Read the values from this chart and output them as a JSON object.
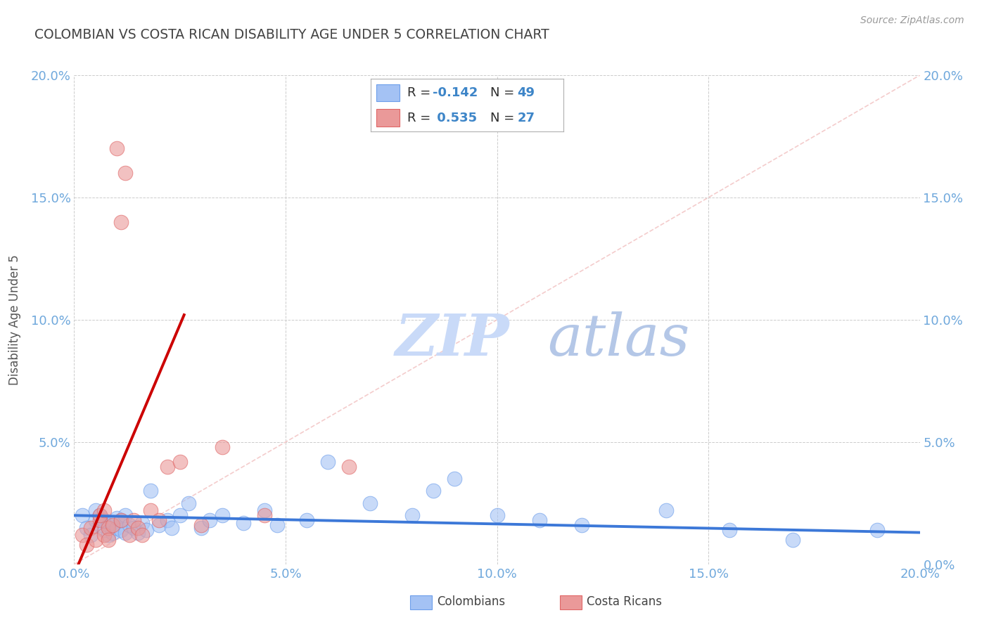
{
  "title": "COLOMBIAN VS COSTA RICAN DISABILITY AGE UNDER 5 CORRELATION CHART",
  "source": "Source: ZipAtlas.com",
  "ylabel": "Disability Age Under 5",
  "xlim": [
    0.0,
    0.2
  ],
  "ylim": [
    0.0,
    0.2
  ],
  "xtick_vals": [
    0.0,
    0.05,
    0.1,
    0.15,
    0.2
  ],
  "xtick_labels": [
    "0.0%",
    "5.0%",
    "10.0%",
    "15.0%",
    "20.0%"
  ],
  "ytick_vals": [
    0.0,
    0.05,
    0.1,
    0.15,
    0.2
  ],
  "ytick_labels": [
    "",
    "5.0%",
    "10.0%",
    "15.0%",
    "20.0%"
  ],
  "right_ytick_labels": [
    "0.0%",
    "5.0%",
    "10.0%",
    "15.0%",
    "20.0%"
  ],
  "colombian_color": "#a4c2f4",
  "colombian_edge": "#6d9eeb",
  "costa_rican_color": "#ea9999",
  "costa_rican_edge": "#e06666",
  "trend_colombian_color": "#3c78d8",
  "trend_costa_rican_color": "#cc0000",
  "grid_color": "#cccccc",
  "watermark_zip_color": "#c9daf8",
  "watermark_atlas_color": "#b4c7e7",
  "title_color": "#434343",
  "tick_color": "#6fa8dc",
  "legend_text_color": "#3c3c3c",
  "legend_val_color": "#3d85c8",
  "background_color": "#ffffff",
  "diag_line_color": "#f4cccc",
  "colombians_scatter_x": [
    0.002,
    0.003,
    0.004,
    0.005,
    0.005,
    0.006,
    0.006,
    0.007,
    0.007,
    0.008,
    0.008,
    0.009,
    0.009,
    0.01,
    0.01,
    0.011,
    0.011,
    0.012,
    0.012,
    0.013,
    0.014,
    0.015,
    0.016,
    0.017,
    0.018,
    0.02,
    0.022,
    0.023,
    0.025,
    0.027,
    0.03,
    0.032,
    0.035,
    0.04,
    0.045,
    0.048,
    0.055,
    0.06,
    0.07,
    0.08,
    0.085,
    0.09,
    0.1,
    0.11,
    0.12,
    0.14,
    0.155,
    0.17,
    0.19
  ],
  "colombians_scatter_y": [
    0.02,
    0.015,
    0.012,
    0.018,
    0.022,
    0.016,
    0.02,
    0.014,
    0.018,
    0.012,
    0.016,
    0.013,
    0.017,
    0.015,
    0.019,
    0.014,
    0.018,
    0.013,
    0.02,
    0.016,
    0.015,
    0.013,
    0.017,
    0.014,
    0.03,
    0.016,
    0.018,
    0.015,
    0.02,
    0.025,
    0.015,
    0.018,
    0.02,
    0.017,
    0.022,
    0.016,
    0.018,
    0.042,
    0.025,
    0.02,
    0.03,
    0.035,
    0.02,
    0.018,
    0.016,
    0.022,
    0.014,
    0.01,
    0.014
  ],
  "costa_rican_scatter_x": [
    0.002,
    0.003,
    0.004,
    0.005,
    0.006,
    0.006,
    0.007,
    0.007,
    0.008,
    0.008,
    0.009,
    0.01,
    0.011,
    0.011,
    0.012,
    0.013,
    0.014,
    0.015,
    0.016,
    0.018,
    0.02,
    0.022,
    0.025,
    0.03,
    0.035,
    0.045,
    0.065
  ],
  "costa_rican_scatter_y": [
    0.012,
    0.008,
    0.015,
    0.01,
    0.018,
    0.02,
    0.012,
    0.022,
    0.015,
    0.01,
    0.016,
    0.17,
    0.14,
    0.018,
    0.16,
    0.012,
    0.018,
    0.015,
    0.012,
    0.022,
    0.018,
    0.04,
    0.042,
    0.016,
    0.048,
    0.02,
    0.04
  ],
  "colombian_trend_x": [
    0.0,
    0.2
  ],
  "colombian_trend_y": [
    0.02,
    0.013
  ],
  "costa_rican_trend_x": [
    0.001,
    0.026
  ],
  "costa_rican_trend_y": [
    0.0,
    0.102
  ]
}
